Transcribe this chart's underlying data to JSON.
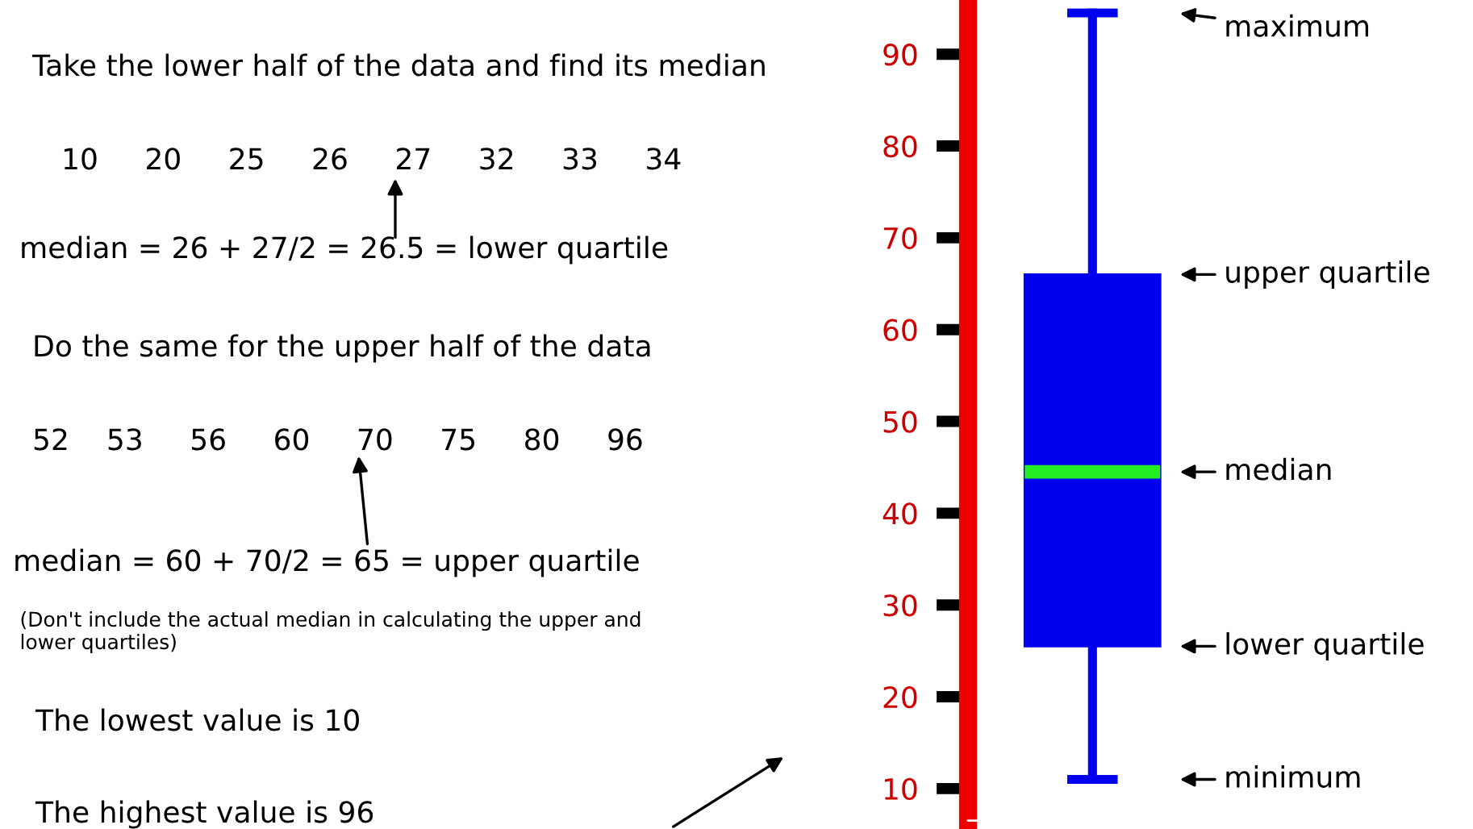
{
  "chart_data": {
    "type": "box",
    "categories": [
      null
    ],
    "boxes": [
      {
        "low": 11,
        "q1": 25.5,
        "median": 44.5,
        "q3": 66,
        "high": 94.5
      }
    ],
    "ylim": [
      6.5,
      95
    ],
    "yticks": [
      10,
      20,
      30,
      40,
      50,
      60,
      70,
      80,
      90
    ],
    "tick_labels": "y",
    "annotations": [
      "maximum",
      "upper quartile",
      "median",
      "lower quartile",
      "minimum",
      "Take the lower half of the data and find its median",
      "10     20     25     26     27     32     33     34",
      "median = 26 + 27/2 = 26.5 = lower quartile",
      "Do the same for the upper half of the data",
      "52    53     56     60     70     75     80     96",
      "median = 60 + 70/2 = 65 = upper quartile",
      "(Don't include the actual median in calculating the upper and lower quartiles)",
      "The lowest value is 10",
      "The highest value is 96"
    ]
  }
}
